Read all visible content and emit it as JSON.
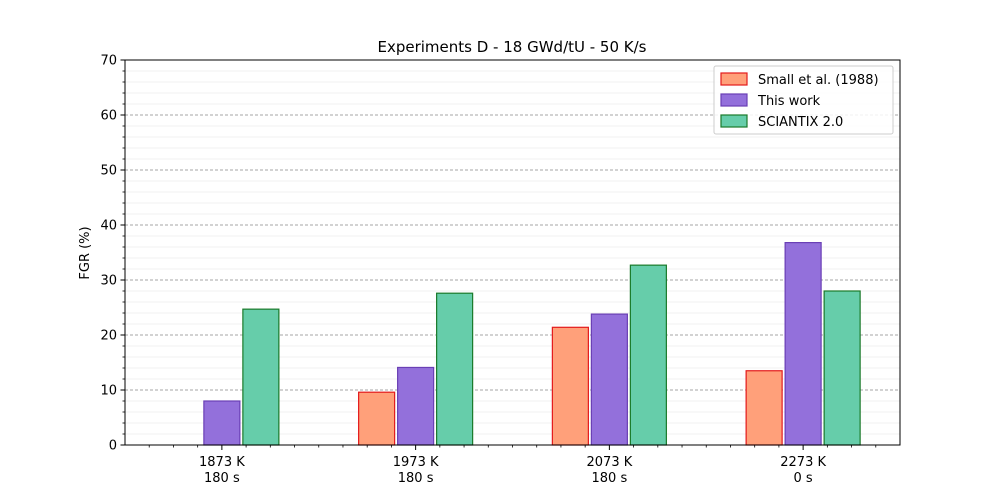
{
  "chart_data": {
    "type": "bar",
    "title": "Experiments D - 18 GWd/tU - 50 K/s",
    "xlabel": "",
    "ylabel": "FGR (%)",
    "ylim": [
      0,
      70
    ],
    "yticks": [
      0,
      10,
      20,
      30,
      40,
      50,
      60,
      70
    ],
    "grid": "horizontal dashed",
    "legend_position": "top-right",
    "categories": [
      [
        "1873 K",
        "180 s"
      ],
      [
        "1973 K",
        "180 s"
      ],
      [
        "2073 K",
        "180 s"
      ],
      [
        "2273 K",
        "0 s"
      ]
    ],
    "series": [
      {
        "name": "Small et al. (1988)",
        "values": [
          0,
          9.6,
          21.4,
          13.5
        ],
        "fill": "#ffa07a",
        "stroke": "#e31a1c"
      },
      {
        "name": "This work",
        "values": [
          8.0,
          14.1,
          23.8,
          36.8
        ],
        "fill": "#9370db",
        "stroke": "#6a3fb5"
      },
      {
        "name": "SCIANTIX 2.0",
        "values": [
          24.7,
          27.6,
          32.7,
          28.0
        ],
        "fill": "#66cdaa",
        "stroke": "#1a7a2a"
      }
    ]
  }
}
